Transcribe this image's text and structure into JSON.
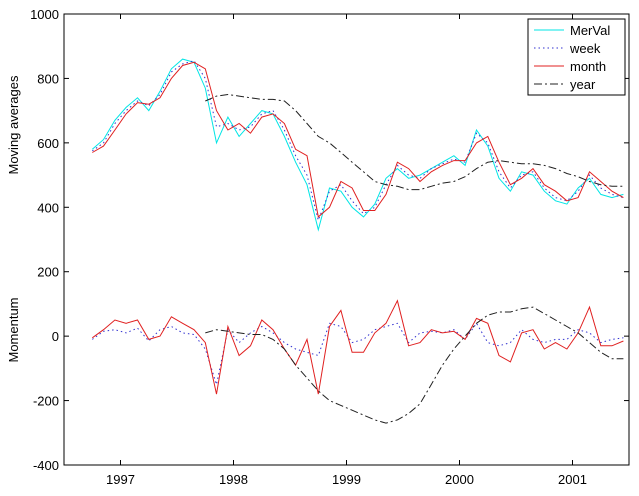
{
  "chart_data": {
    "type": "line",
    "ylabels": [
      "Moving averages",
      "Momentum"
    ],
    "x": [
      1996.75,
      1996.85,
      1996.95,
      1997.05,
      1997.15,
      1997.25,
      1997.35,
      1997.45,
      1997.55,
      1997.65,
      1997.75,
      1997.85,
      1997.95,
      1998.05,
      1998.15,
      1998.25,
      1998.35,
      1998.45,
      1998.55,
      1998.65,
      1998.75,
      1998.85,
      1998.95,
      1999.05,
      1999.15,
      1999.25,
      1999.35,
      1999.45,
      1999.55,
      1999.65,
      1999.75,
      1999.85,
      1999.95,
      2000.05,
      2000.15,
      2000.25,
      2000.35,
      2000.45,
      2000.55,
      2000.65,
      2000.75,
      2000.85,
      2000.95,
      2001.05,
      2001.15,
      2001.25,
      2001.35,
      2001.45
    ],
    "series": [
      {
        "name": "MerVal",
        "color": "#00e5e5",
        "style": "solid",
        "values": [
          580,
          610,
          670,
          710,
          740,
          700,
          760,
          830,
          860,
          850,
          770,
          600,
          680,
          620,
          660,
          700,
          690,
          620,
          540,
          470,
          330,
          460,
          450,
          400,
          370,
          410,
          490,
          520,
          490,
          500,
          520,
          540,
          560,
          530,
          640,
          590,
          490,
          450,
          510,
          500,
          450,
          420,
          410,
          460,
          490,
          440,
          430,
          440
        ]
      },
      {
        "name": "week",
        "color": "#3030d0",
        "style": "dotted",
        "values": [
          575,
          600,
          660,
          700,
          730,
          715,
          750,
          820,
          845,
          855,
          800,
          650,
          660,
          640,
          650,
          690,
          700,
          640,
          560,
          500,
          360,
          450,
          470,
          420,
          380,
          400,
          470,
          530,
          500,
          490,
          520,
          535,
          550,
          540,
          630,
          600,
          510,
          460,
          500,
          510,
          460,
          430,
          420,
          450,
          500,
          460,
          440,
          430
        ]
      },
      {
        "name": "month",
        "color": "#e02020",
        "style": "solid",
        "values": [
          570,
          590,
          640,
          690,
          725,
          720,
          740,
          800,
          840,
          850,
          830,
          700,
          640,
          660,
          630,
          680,
          690,
          660,
          580,
          560,
          370,
          400,
          480,
          460,
          390,
          390,
          440,
          540,
          520,
          480,
          510,
          530,
          545,
          545,
          600,
          620,
          540,
          470,
          490,
          520,
          470,
          450,
          420,
          430,
          510,
          480,
          450,
          430
        ]
      },
      {
        "name": "year",
        "color": "#202020",
        "style": "dashdot",
        "values": [
          null,
          null,
          null,
          null,
          null,
          null,
          null,
          null,
          null,
          null,
          730,
          745,
          750,
          745,
          740,
          735,
          735,
          730,
          700,
          660,
          620,
          600,
          570,
          540,
          510,
          480,
          470,
          465,
          455,
          455,
          465,
          475,
          480,
          495,
          520,
          540,
          545,
          540,
          535,
          535,
          530,
          520,
          505,
          495,
          480,
          470,
          465,
          465
        ]
      },
      {
        "color": "#3030d0",
        "style": "dotted",
        "values": [
          -10,
          15,
          20,
          10,
          25,
          -15,
          20,
          30,
          10,
          5,
          -40,
          -150,
          20,
          -20,
          10,
          30,
          10,
          -20,
          -40,
          -50,
          -60,
          40,
          30,
          -20,
          -10,
          20,
          30,
          40,
          -20,
          10,
          15,
          10,
          20,
          -10,
          40,
          -20,
          -30,
          -20,
          20,
          -10,
          -20,
          -10,
          -10,
          20,
          10,
          -20,
          -10,
          -5
        ]
      },
      {
        "color": "#e02020",
        "style": "solid",
        "values": [
          -5,
          20,
          50,
          40,
          50,
          -10,
          0,
          60,
          40,
          20,
          -20,
          -180,
          30,
          -60,
          -30,
          50,
          20,
          -40,
          -90,
          -10,
          -180,
          30,
          80,
          -50,
          -50,
          10,
          40,
          110,
          -30,
          -20,
          20,
          10,
          15,
          -10,
          55,
          40,
          -60,
          -80,
          10,
          20,
          -40,
          -20,
          -40,
          10,
          90,
          -30,
          -30,
          -15
        ]
      },
      {
        "color": "#202020",
        "style": "dashdot",
        "values": [
          null,
          null,
          null,
          null,
          null,
          null,
          null,
          null,
          null,
          null,
          10,
          20,
          15,
          10,
          5,
          5,
          -10,
          -40,
          -90,
          -130,
          -170,
          -200,
          -215,
          -230,
          -245,
          -260,
          -270,
          -260,
          -240,
          -210,
          -150,
          -90,
          -40,
          0,
          40,
          65,
          75,
          75,
          85,
          90,
          70,
          50,
          30,
          10,
          -20,
          -50,
          -70,
          -70
        ]
      }
    ],
    "xlim": [
      1996.5,
      2001.5
    ],
    "xticks": [
      1997,
      1998,
      1999,
      2000,
      2001
    ],
    "ylim": [
      -400,
      1000
    ],
    "yticks": [
      -400,
      -200,
      0,
      200,
      400,
      600,
      800,
      1000
    ],
    "legend": "top-right"
  }
}
